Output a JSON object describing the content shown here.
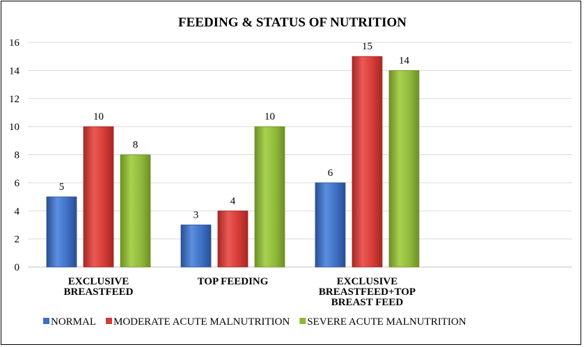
{
  "chart_data": {
    "type": "bar",
    "title": "FEEDING & STATUS OF NUTRITION",
    "categories": [
      [
        "EXCLUSIVE",
        "BREASTFEED"
      ],
      [
        "TOP FEEDING"
      ],
      [
        "EXCLUSIVE",
        "BREASTFEED+TOP",
        "BREAST FEED"
      ]
    ],
    "series": [
      {
        "name": "NORMAL",
        "values": [
          5,
          3,
          6
        ],
        "color": "#3d6fc4",
        "color_light": "#5b8fe0",
        "color_dark": "#2a4f92"
      },
      {
        "name": "MODERATE ACUTE MALNUTRITION",
        "values": [
          10,
          4,
          15
        ],
        "color": "#d43a36",
        "color_light": "#ec5a55",
        "color_dark": "#a52724"
      },
      {
        "name": "SEVERE ACUTE MALNUTRITION",
        "values": [
          8,
          10,
          14
        ],
        "color": "#8fb83a",
        "color_light": "#a9d14f",
        "color_dark": "#6d8f25"
      }
    ],
    "ylim": [
      0,
      16
    ],
    "yticks": [
      0,
      2,
      4,
      6,
      8,
      10,
      12,
      14,
      16
    ],
    "xlabel": "",
    "ylabel": "",
    "legend": "bottom"
  }
}
